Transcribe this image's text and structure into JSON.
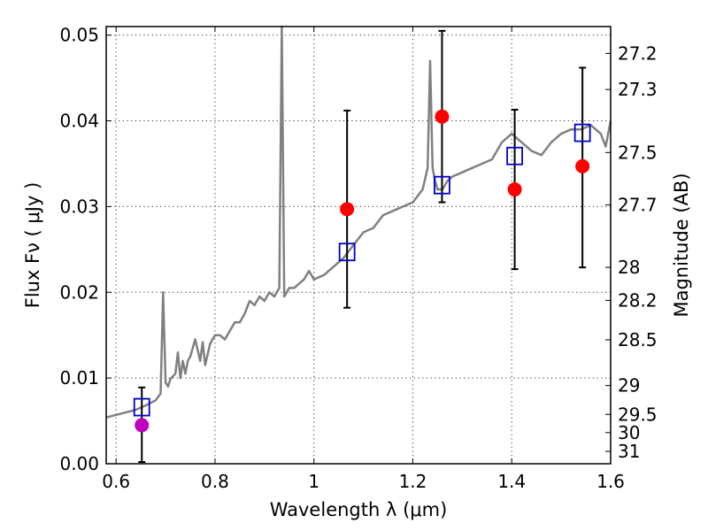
{
  "chart_data": {
    "type": "scatter",
    "xlabel": "Wavelength  λ (μm)",
    "ylabel": "Flux  Fν  ( μJy )",
    "y2label": "Magnitude (AB)",
    "xlim": [
      0.58,
      1.6
    ],
    "ylim": [
      0.0,
      0.051
    ],
    "grid": true,
    "x_ticks": [
      0.6,
      0.8,
      1.0,
      1.2,
      1.4,
      1.6
    ],
    "x_tick_labels": [
      "0.6",
      "0.8",
      "1",
      "1.2",
      "1.4",
      "1.6"
    ],
    "y_ticks": [
      0.0,
      0.01,
      0.02,
      0.03,
      0.04,
      0.05
    ],
    "y_tick_labels": [
      "0.00",
      "0.01",
      "0.02",
      "0.03",
      "0.04",
      "0.05"
    ],
    "y2_ticks": [
      27.2,
      27.3,
      27.5,
      27.7,
      28,
      28.2,
      28.5,
      29,
      29.5,
      30,
      31
    ],
    "y2_tick_labels": [
      "27.2",
      "27.3",
      "27.5",
      "27.7",
      "28",
      "28.2",
      "28.5",
      "29",
      "29.5",
      "30",
      "31"
    ],
    "colors": {
      "spectrum": "#808080",
      "observed": "#ff0000",
      "observed_first": "#bf00bf",
      "model": "#0000cc",
      "errorbar": "#000000"
    },
    "series": [
      {
        "kind": "model_spectrum_line",
        "x": [
          0.58,
          0.6,
          0.62,
          0.64,
          0.66,
          0.68,
          0.69,
          0.695,
          0.7,
          0.705,
          0.71,
          0.72,
          0.725,
          0.73,
          0.735,
          0.74,
          0.745,
          0.75,
          0.76,
          0.77,
          0.775,
          0.78,
          0.79,
          0.8,
          0.81,
          0.82,
          0.83,
          0.84,
          0.85,
          0.86,
          0.87,
          0.88,
          0.89,
          0.9,
          0.91,
          0.92,
          0.93,
          0.935,
          0.94,
          0.95,
          0.96,
          0.97,
          0.98,
          0.99,
          1.0,
          1.02,
          1.04,
          1.06,
          1.08,
          1.1,
          1.12,
          1.14,
          1.16,
          1.18,
          1.2,
          1.22,
          1.23,
          1.235,
          1.24,
          1.245,
          1.25,
          1.26,
          1.27,
          1.28,
          1.3,
          1.32,
          1.34,
          1.36,
          1.38,
          1.4,
          1.42,
          1.44,
          1.46,
          1.48,
          1.5,
          1.52,
          1.54,
          1.56,
          1.58,
          1.59,
          1.6
        ],
        "y": [
          0.0054,
          0.0057,
          0.006,
          0.0063,
          0.0068,
          0.0074,
          0.0082,
          0.02,
          0.0095,
          0.009,
          0.0099,
          0.0105,
          0.013,
          0.01,
          0.012,
          0.0105,
          0.012,
          0.0125,
          0.0145,
          0.012,
          0.0142,
          0.0115,
          0.014,
          0.015,
          0.015,
          0.0145,
          0.0155,
          0.0165,
          0.0165,
          0.0175,
          0.019,
          0.0185,
          0.0195,
          0.019,
          0.02,
          0.0195,
          0.0205,
          0.051,
          0.0195,
          0.0205,
          0.0205,
          0.021,
          0.0215,
          0.0225,
          0.0215,
          0.022,
          0.023,
          0.024,
          0.0255,
          0.027,
          0.0275,
          0.029,
          0.0295,
          0.03,
          0.0305,
          0.032,
          0.0345,
          0.047,
          0.0345,
          0.033,
          0.032,
          0.032,
          0.033,
          0.0335,
          0.034,
          0.0345,
          0.035,
          0.0355,
          0.0375,
          0.0385,
          0.0375,
          0.0365,
          0.036,
          0.0375,
          0.0385,
          0.039,
          0.039,
          0.0395,
          0.0385,
          0.037,
          0.04
        ]
      },
      {
        "kind": "observed",
        "x": [
          0.652,
          1.067,
          1.259,
          1.406,
          1.543
        ],
        "y": [
          0.0045,
          0.0297,
          0.0405,
          0.032,
          0.0347
        ],
        "yerr_low": [
          0.0002,
          0.0182,
          0.0305,
          0.0227,
          0.0229
        ],
        "yerr_high": [
          0.0089,
          0.0412,
          0.0505,
          0.0413,
          0.0462
        ]
      },
      {
        "kind": "model_photometry",
        "x": [
          0.652,
          1.067,
          1.259,
          1.406,
          1.543
        ],
        "y": [
          0.0066,
          0.0247,
          0.0325,
          0.0359,
          0.0386
        ]
      }
    ]
  }
}
